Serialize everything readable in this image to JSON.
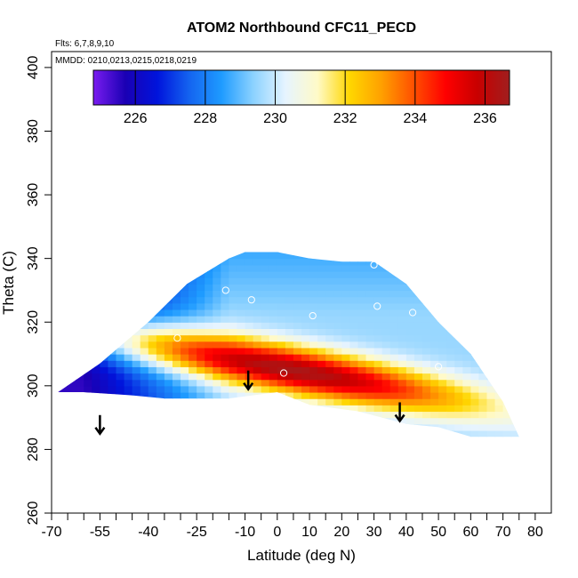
{
  "chart_data": {
    "type": "heatmap",
    "title": "ATOM2 Northbound CFC11_PECD",
    "subtitle_flights": "Flts: 6,7,8,9,10",
    "subtitle_dates": "MMDD: 0210,0213,0215,0218,0219",
    "xlabel": "Latitude (deg N)",
    "ylabel": "Theta (C)",
    "xlim": [
      -70,
      85
    ],
    "ylim": [
      260,
      405
    ],
    "x_ticks": [
      -70,
      -55,
      -40,
      -25,
      -10,
      0,
      10,
      20,
      30,
      40,
      50,
      60,
      70,
      80
    ],
    "x_tick_labels": [
      "-70",
      "-55",
      "-40",
      "-25",
      "-10",
      "0",
      "10",
      "20",
      "30",
      "40",
      "50",
      "60",
      "70",
      "80"
    ],
    "x_minor_ticks": [
      -65,
      -60,
      -50,
      -45,
      -35,
      -30,
      -20,
      -15,
      -5,
      5,
      15,
      25,
      35,
      45,
      55,
      65,
      75
    ],
    "y_ticks": [
      260,
      280,
      300,
      320,
      340,
      360,
      380,
      400
    ],
    "y_tick_labels": [
      "260",
      "280",
      "300",
      "320",
      "340",
      "360",
      "380",
      "400"
    ],
    "colorbar": {
      "range": [
        224.8,
        236.7
      ],
      "ticks": [
        226,
        228,
        230,
        232,
        234,
        236
      ],
      "tick_labels": [
        "226",
        "228",
        "230",
        "232",
        "234",
        "236"
      ],
      "colors": [
        "#7a1cf0",
        "#1a00b4",
        "#0014dc",
        "#1464f0",
        "#1e9bff",
        "#8cd2ff",
        "#e6f4ff",
        "#fffac8",
        "#ffd700",
        "#ffa000",
        "#ff5000",
        "#ff0000",
        "#c80000",
        "#a01e1e"
      ]
    },
    "domain_outline": [
      [
        -68,
        298
      ],
      [
        -55,
        307
      ],
      [
        -40,
        320
      ],
      [
        -28,
        332
      ],
      [
        -15,
        340
      ],
      [
        -10,
        342
      ],
      [
        0,
        342
      ],
      [
        10,
        340
      ],
      [
        20,
        339
      ],
      [
        30,
        339
      ],
      [
        40,
        332
      ],
      [
        50,
        320
      ],
      [
        60,
        310
      ],
      [
        70,
        295
      ],
      [
        75,
        284
      ],
      [
        60,
        284
      ],
      [
        50,
        287
      ],
      [
        40,
        288
      ],
      [
        25,
        292
      ],
      [
        10,
        294
      ],
      [
        0,
        298
      ],
      [
        -15,
        296
      ],
      [
        -25,
        296
      ],
      [
        -35,
        296
      ],
      [
        -45,
        297
      ],
      [
        -60,
        298
      ]
    ],
    "field_model": {
      "max_point": [
        5,
        305
      ],
      "max_value": 236.5,
      "background_value": 229.5,
      "southern_min": 225.5
    },
    "sample_points": [
      {
        "lat": -16,
        "theta": 330
      },
      {
        "lat": -8,
        "theta": 327
      },
      {
        "lat": -31,
        "theta": 315
      },
      {
        "lat": 11,
        "theta": 322
      },
      {
        "lat": 30,
        "theta": 338
      },
      {
        "lat": 31,
        "theta": 325
      },
      {
        "lat": 42,
        "theta": 323
      },
      {
        "lat": 2,
        "theta": 304
      },
      {
        "lat": 50,
        "theta": 306
      }
    ],
    "arrows": [
      {
        "lat": -55,
        "theta": 288
      },
      {
        "lat": -9,
        "theta": 302
      },
      {
        "lat": 38,
        "theta": 292
      }
    ]
  }
}
